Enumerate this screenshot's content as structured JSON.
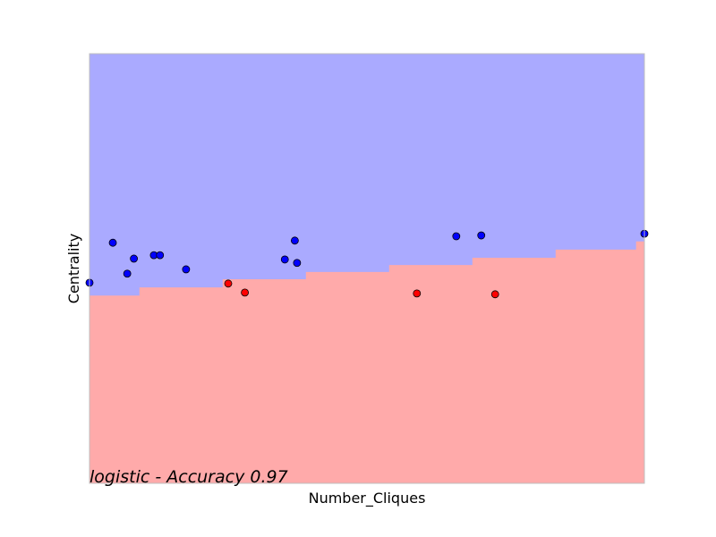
{
  "chart_data": {
    "type": "scatter",
    "title": "",
    "xlabel": "Number_Cliques",
    "ylabel": "Centrality",
    "annotation": "logistic - Accuracy 0.97",
    "xlim": [
      0,
      100
    ],
    "ylim": [
      0,
      100
    ],
    "ticks_shown": false,
    "grid": false,
    "legend": "none",
    "background": "#ffffff",
    "frame_color": "#bfbfbf",
    "regions": [
      {
        "class": "blue",
        "color": "#aaaaff"
      },
      {
        "class": "red",
        "color": "#ffaaaa"
      }
    ],
    "decision_boundary": {
      "x": [
        0,
        9,
        9,
        24,
        24,
        39,
        39,
        54,
        54,
        69,
        69,
        84,
        84,
        98.5,
        98.5,
        100
      ],
      "y": [
        43.7,
        43.7,
        45.6,
        45.6,
        47.5,
        47.5,
        49.2,
        49.2,
        50.8,
        50.8,
        52.5,
        52.5,
        54.4,
        54.4,
        56.3,
        56.3
      ]
    },
    "series": [
      {
        "color": "#0000ff",
        "x": [
          0,
          4.2,
          6.8,
          8.0,
          11.6,
          12.7,
          17.4,
          35.2,
          37.0,
          37.4,
          66.1,
          70.6,
          100
        ],
        "y": [
          46.7,
          56.0,
          48.8,
          52.3,
          53.1,
          53.1,
          49.8,
          52.1,
          56.5,
          51.3,
          57.5,
          57.7,
          58.1
        ]
      },
      {
        "color": "#ff0000",
        "x": [
          25.0,
          28.0,
          59.0,
          73.1
        ],
        "y": [
          46.5,
          44.4,
          44.2,
          44.0
        ]
      }
    ]
  }
}
